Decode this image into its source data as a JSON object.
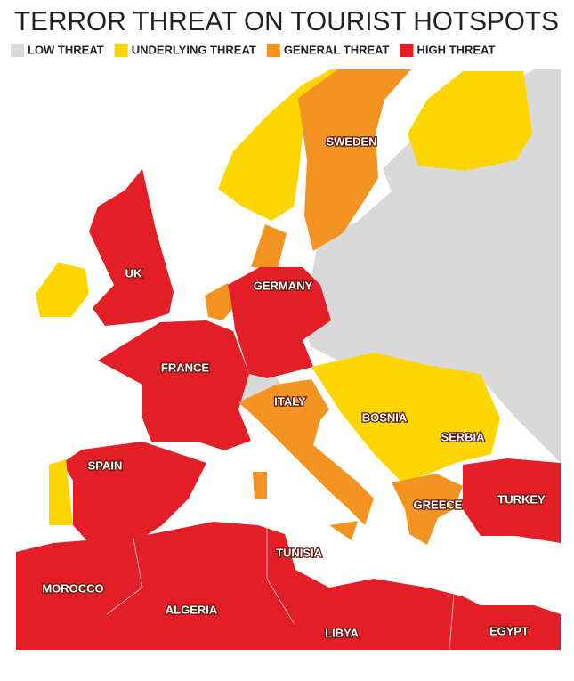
{
  "title": "TERROR THREAT ON TOURIST HOTSPOTS",
  "legend": [
    {
      "label": "LOW THREAT",
      "color": "#d9d9d9"
    },
    {
      "label": "UNDERLYING THREAT",
      "color": "#fdd600"
    },
    {
      "label": "GENERAL THREAT",
      "color": "#f39322"
    },
    {
      "label": "HIGH THREAT",
      "color": "#e41e26"
    }
  ],
  "labels": [
    "SWEDEN",
    "UK",
    "GERMANY",
    "FRANCE",
    "ITALY",
    "BOSNIA",
    "SERBIA",
    "SPAIN",
    "GREECE",
    "TURKEY",
    "TUNISIA",
    "MOROCCO",
    "ALGERIA",
    "LIBYA",
    "EGYPT"
  ]
}
